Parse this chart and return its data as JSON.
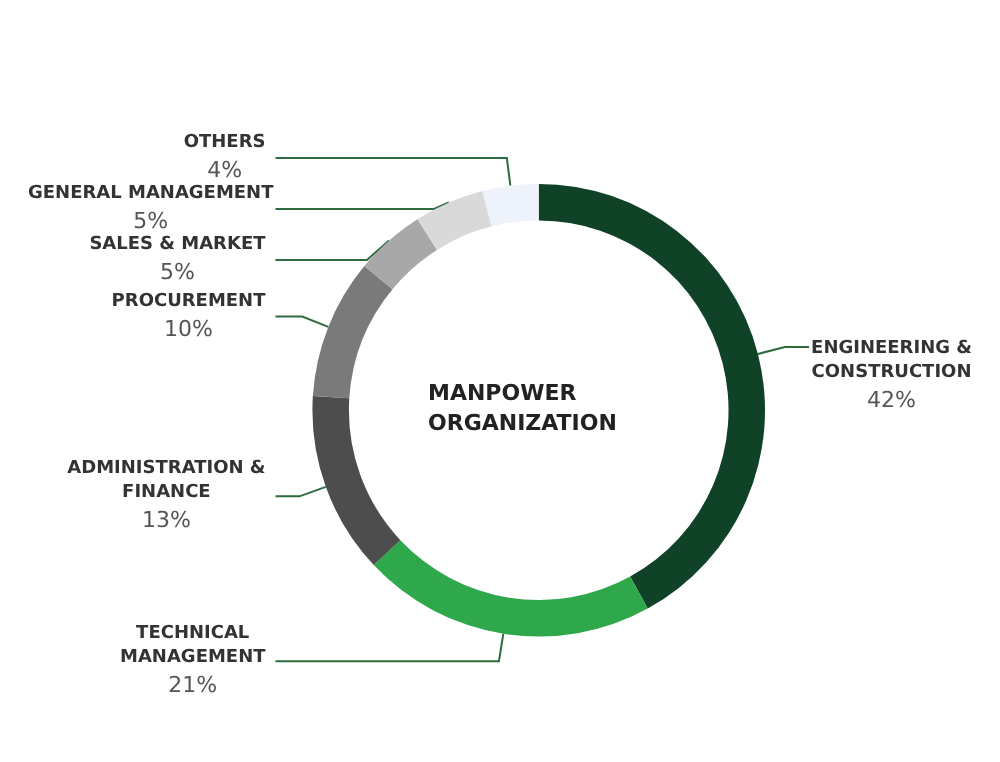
{
  "chart_data": {
    "type": "donut",
    "title": "MANPOWER ORGANIZATION",
    "categories": [
      "ENGINEERING & CONSTRUCTION",
      "TECHNICAL MANAGEMENT",
      "ADMINISTRATION & FINANCE",
      "PROCUREMENT",
      "SALES & MARKET",
      "GENERAL MANAGEMENT",
      "OTHERS"
    ],
    "values": [
      42,
      21,
      13,
      10,
      5,
      5,
      4
    ],
    "colors": [
      "#0f4226",
      "#2ea84a",
      "#4d4d4d",
      "#7a7a7a",
      "#a8a8a8",
      "#d9d9d9",
      "#eef2fa"
    ],
    "value_labels": [
      "42%",
      "21%",
      "13%",
      "10%",
      "5%",
      "5%",
      "4%"
    ],
    "legend": false
  }
}
